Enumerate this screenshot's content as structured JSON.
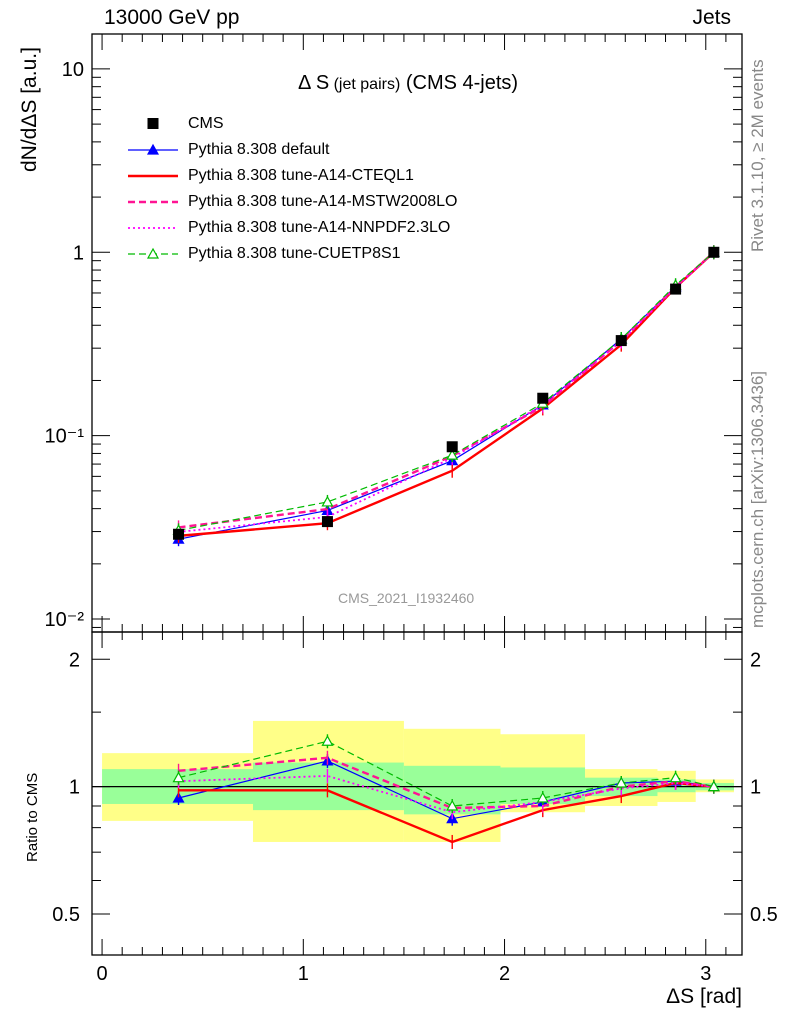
{
  "header": {
    "left": "13000 GeV pp",
    "right": "Jets"
  },
  "side": {
    "rivet": "Rivet 3.1.10, ≥ 2M events",
    "mcplots": "mcplots.cern.ch [arXiv:1306.3436]"
  },
  "watermark": "CMS_2021_I1932460",
  "title": {
    "main": "Δ S",
    "small": " (jet pairs)",
    "rest": " (CMS 4-jets)"
  },
  "colors": {
    "data": "#000000",
    "default": "#0000ff",
    "cteql1": "#ff0000",
    "mstw": "#ff1493",
    "nnpdf": "#ff00ff",
    "cuetp8s1": "#00bb00",
    "band_inner": "#99ff99",
    "band_outer": "#ffff88"
  },
  "chart_data": {
    "type": "line",
    "xlabel": "ΔS [rad]",
    "ylabel": "dN/dΔS [a.u.]",
    "ratio_ylabel": "Ratio to CMS",
    "xlim": [
      -0.05,
      3.18
    ],
    "ylim": [
      0.0085,
      15.5
    ],
    "yscale": "log",
    "ratio_ylim": [
      0.4,
      2.32
    ],
    "ratio_yscale": "log",
    "xticks": [
      0,
      1,
      2,
      3
    ],
    "xtick_labels": [
      "0",
      "1",
      "2",
      "3"
    ],
    "yticks": [
      0.01,
      0.1,
      1,
      10
    ],
    "ytick_labels": [
      "10⁻²",
      "10⁻¹",
      "1",
      "10"
    ],
    "ratio_yticks": [
      0.5,
      1,
      2
    ],
    "ratio_ytick_labels": [
      "0.5",
      "1",
      "2"
    ],
    "bins": [
      [
        0,
        0.75
      ],
      [
        0.75,
        1.5
      ],
      [
        1.5,
        1.98
      ],
      [
        1.98,
        2.4
      ],
      [
        2.4,
        2.76
      ],
      [
        2.76,
        2.95
      ],
      [
        2.95,
        3.14
      ]
    ],
    "x": [
      0.38,
      1.12,
      1.74,
      2.19,
      2.58,
      2.85,
      3.04
    ],
    "data": {
      "name": "CMS",
      "values": [
        0.029,
        0.034,
        0.087,
        0.16,
        0.33,
        0.63,
        1.0
      ],
      "band_inner": [
        [
          0.91,
          1.1
        ],
        [
          0.88,
          1.14
        ],
        [
          0.86,
          1.12
        ],
        [
          0.91,
          1.11
        ],
        [
          0.95,
          1.05
        ],
        [
          0.97,
          1.04
        ],
        [
          0.98,
          1.02
        ]
      ],
      "band_outer": [
        [
          0.83,
          1.2
        ],
        [
          0.74,
          1.43
        ],
        [
          0.74,
          1.37
        ],
        [
          0.87,
          1.33
        ],
        [
          0.9,
          1.1
        ],
        [
          0.92,
          1.09
        ],
        [
          0.97,
          1.04
        ]
      ]
    },
    "series": [
      {
        "name": "Pythia 8.308 default",
        "key": "default",
        "style": "solid",
        "marker": "triangle-filled",
        "width": 1.2,
        "ratio": [
          0.94,
          1.15,
          0.84,
          0.92,
          1.02,
          1.03,
          1.0
        ]
      },
      {
        "name": "Pythia 8.308 tune-A14-CTEQL1",
        "key": "cteql1",
        "style": "solid",
        "marker": "none",
        "width": 2.4,
        "ratio": [
          0.98,
          0.98,
          0.74,
          0.88,
          0.95,
          1.02,
          1.0
        ]
      },
      {
        "name": "Pythia 8.308 tune-A14-MSTW2008LO",
        "key": "mstw",
        "style": "dashed",
        "marker": "none",
        "width": 2.4,
        "ratio": [
          1.09,
          1.17,
          0.89,
          0.9,
          1.0,
          1.03,
          1.0
        ]
      },
      {
        "name": "Pythia 8.308 tune-A14-NNPDF2.3LO",
        "key": "nnpdf",
        "style": "dotted",
        "marker": "none",
        "width": 1.8,
        "ratio": [
          1.03,
          1.06,
          0.87,
          0.92,
          0.99,
          1.02,
          1.0
        ]
      },
      {
        "name": "Pythia 8.308 tune-CUETP8S1",
        "key": "cuetp8s1",
        "style": "dashed",
        "marker": "triangle-open",
        "width": 1.2,
        "ratio": [
          1.05,
          1.28,
          0.9,
          0.94,
          1.02,
          1.05,
          1.0
        ]
      }
    ]
  }
}
